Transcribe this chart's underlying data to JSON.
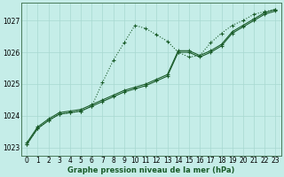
{
  "title": "Graphe pression niveau de la mer (hPa)",
  "bg_color": "#c5ede8",
  "line_color": "#1a5c2a",
  "grid_color": "#a8d8d0",
  "ylim": [
    1022.75,
    1027.55
  ],
  "xlim": [
    -0.5,
    23.5
  ],
  "yticks": [
    1023,
    1024,
    1025,
    1026,
    1027
  ],
  "xticks": [
    0,
    1,
    2,
    3,
    4,
    5,
    6,
    7,
    8,
    9,
    10,
    11,
    12,
    13,
    14,
    15,
    16,
    17,
    18,
    19,
    20,
    21,
    22,
    23
  ],
  "line1_x": [
    0,
    1,
    2,
    3,
    4,
    5,
    6,
    7,
    8,
    9,
    10,
    11,
    12,
    13,
    14,
    15,
    16,
    17,
    18,
    19,
    20,
    21,
    22,
    23
  ],
  "line1_y": [
    1023.1,
    1023.6,
    1023.85,
    1024.05,
    1024.1,
    1024.15,
    1024.3,
    1024.45,
    1024.6,
    1024.75,
    1024.85,
    1024.95,
    1025.1,
    1025.25,
    1026.0,
    1026.0,
    1025.85,
    1026.0,
    1026.2,
    1026.6,
    1026.8,
    1027.0,
    1027.2,
    1027.3
  ],
  "line2_x": [
    0,
    1,
    2,
    3,
    4,
    5,
    6,
    7,
    8,
    9,
    10,
    11,
    12,
    13,
    14,
    15,
    16,
    17,
    18,
    19,
    20,
    21,
    22,
    23
  ],
  "line2_y": [
    1023.15,
    1023.65,
    1023.9,
    1024.1,
    1024.15,
    1024.2,
    1024.35,
    1024.5,
    1024.65,
    1024.8,
    1024.9,
    1025.0,
    1025.15,
    1025.3,
    1026.05,
    1026.05,
    1025.9,
    1026.05,
    1026.25,
    1026.65,
    1026.85,
    1027.05,
    1027.25,
    1027.35
  ],
  "line3_x": [
    0,
    1,
    2,
    3,
    4,
    5,
    6,
    7,
    8,
    9,
    10,
    11,
    12,
    13,
    14,
    15,
    16,
    17,
    18,
    19,
    20,
    21,
    22,
    23
  ],
  "line3_y": [
    1023.1,
    1023.6,
    1023.85,
    1024.05,
    1024.1,
    1024.15,
    1024.3,
    1025.05,
    1025.75,
    1026.3,
    1026.85,
    1026.75,
    1026.55,
    1026.35,
    1026.0,
    1025.85,
    1025.9,
    1026.3,
    1026.6,
    1026.85,
    1027.0,
    1027.2,
    1027.28,
    1027.35
  ]
}
